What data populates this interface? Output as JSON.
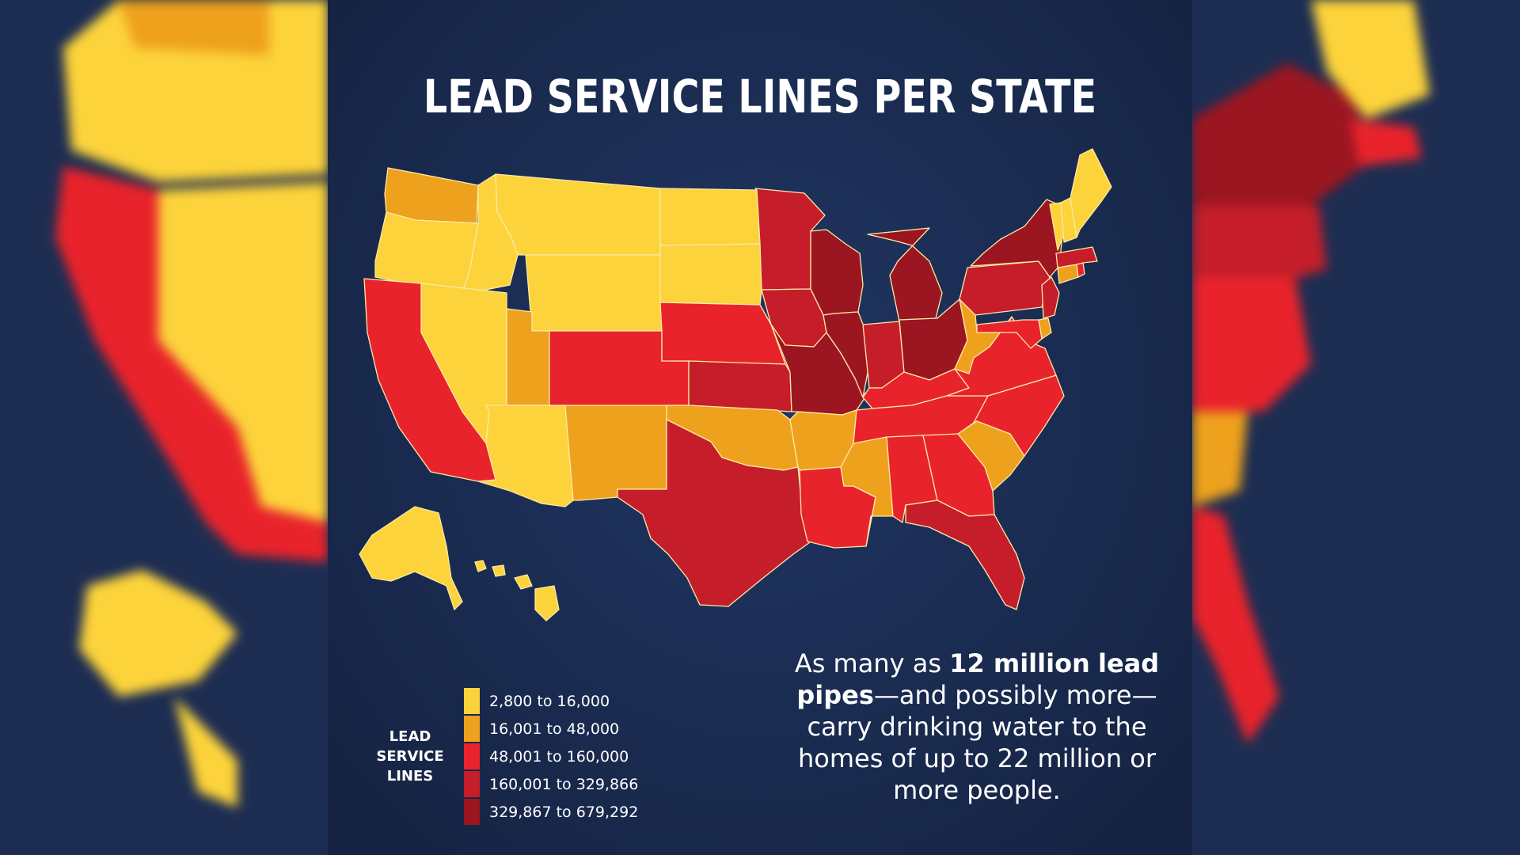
{
  "title": "LEAD SERVICE LINES PER STATE",
  "legend": {
    "title_lines": [
      "LEAD",
      "SERVICE",
      "LINES"
    ],
    "items": [
      {
        "label": "2,800 to 16,000",
        "color": "#fcd33a"
      },
      {
        "label": "16,001 to 48,000",
        "color": "#eea11c"
      },
      {
        "label": "48,001 to 160,000",
        "color": "#e9232b"
      },
      {
        "label": "160,001 to 329,866",
        "color": "#c51e2a"
      },
      {
        "label": "329,867 to 679,292",
        "color": "#9b1620"
      }
    ]
  },
  "callout": {
    "part1": "As many as ",
    "bold1": "12 million",
    "bold2": "lead pipes",
    "part2": "—and possibly more—carry drinking water to the homes of up to 22 million or more people."
  },
  "map_data": {
    "type": "choropleth",
    "region": "United States",
    "state_class": {
      "WA": 1,
      "OR": 0,
      "ID": 0,
      "MT": 0,
      "WY": 0,
      "ND": 0,
      "SD": 0,
      "NV": 0,
      "UT": 1,
      "AZ": 0,
      "NM": 1,
      "CA": 2,
      "CO": 2,
      "NE": 2,
      "KS": 3,
      "OK": 1,
      "TX": 3,
      "MN": 3,
      "IA": 3,
      "MO": 4,
      "AR": 1,
      "LA": 2,
      "WI": 4,
      "IL": 4,
      "MI": 4,
      "IN": 3,
      "OH": 4,
      "KY": 2,
      "TN": 2,
      "MS": 1,
      "AL": 2,
      "GA": 2,
      "FL": 3,
      "SC": 1,
      "NC": 2,
      "VA": 2,
      "WV": 1,
      "PA": 3,
      "NY": 4,
      "NJ": 3,
      "DE": 1,
      "MD": 2,
      "CT": 1,
      "RI": 2,
      "MA": 3,
      "VT": 0,
      "NH": 0,
      "ME": 0,
      "AK": 0,
      "HI": 0
    }
  }
}
